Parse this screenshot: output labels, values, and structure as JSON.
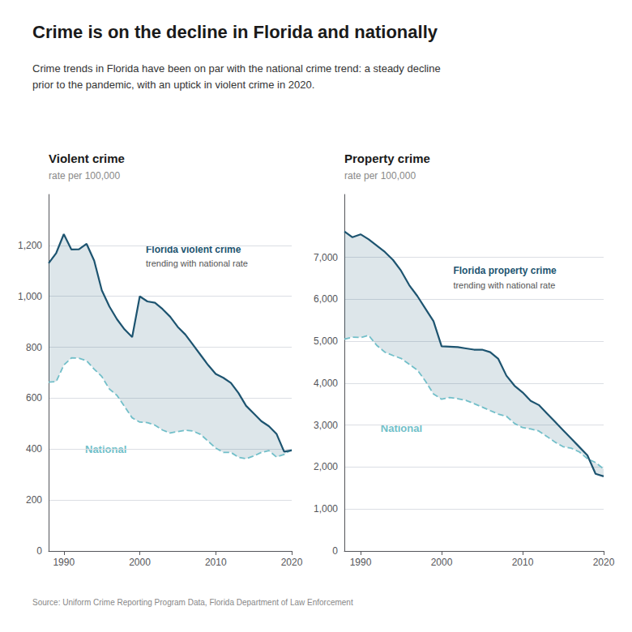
{
  "title": "Crime is on the decline in Florida and nationally",
  "subtitle": "Crime trends in Florida have been on par with the national crime trend: a steady decline\nprior to the pandemic, with an uptick in violent crime in 2020.",
  "annotations": [
    "Source: Uniform Crime Reporting Program Data, Florida Department of Law Enforcement"
  ],
  "chart_data": [
    {
      "type": "line",
      "title": "Violent crime",
      "subtitle": "rate per 100,000",
      "annotations": [
        "trending with national rate"
      ],
      "x": [
        1988,
        1989,
        1990,
        1991,
        1992,
        1993,
        1994,
        1995,
        1996,
        1997,
        1998,
        1999,
        2000,
        2001,
        2002,
        2003,
        2004,
        2005,
        2006,
        2007,
        2008,
        2009,
        2010,
        2011,
        2012,
        2013,
        2014,
        2015,
        2016,
        2017,
        2018,
        2019,
        2020
      ],
      "series": [
        {
          "name": "National",
          "color": "#72bfc9",
          "line_style": "dashed",
          "values": [
            663,
            665,
            730,
            758,
            757,
            747,
            714,
            685,
            636,
            611,
            567,
            523,
            506,
            504,
            494,
            475,
            463,
            469,
            474,
            471,
            458,
            431,
            404,
            387,
            387,
            368,
            362,
            373,
            387,
            394,
            369,
            379,
            398
          ]
        },
        {
          "name": "Florida violent crime",
          "color": "#1d5470",
          "line_style": "solid",
          "values": [
            1130,
            1170,
            1244,
            1184,
            1185,
            1206,
            1140,
            1024,
            960,
            910,
            870,
            840,
            1000,
            980,
            975,
            950,
            920,
            880,
            850,
            810,
            770,
            730,
            695,
            680,
            660,
            620,
            570,
            540,
            510,
            490,
            460,
            390,
            395
          ]
        }
      ],
      "xlim": [
        1988,
        2020
      ],
      "xticks": [
        1990,
        2000,
        2010,
        2020
      ],
      "ylim": [
        0,
        1400
      ],
      "yticks": [
        0,
        200,
        400,
        600,
        800,
        {
          "value": 1000,
          "label": "1,000"
        },
        {
          "value": 1200,
          "label": "1,200"
        }
      ],
      "grid": true
    },
    {
      "type": "line",
      "title": "Property crime",
      "subtitle": "rate per 100,000",
      "annotations": [
        "trending with national rate"
      ],
      "x": [
        1988,
        1989,
        1990,
        1991,
        1992,
        1993,
        1994,
        1995,
        1996,
        1997,
        1998,
        1999,
        2000,
        2001,
        2002,
        2003,
        2004,
        2005,
        2006,
        2007,
        2008,
        2009,
        2010,
        2011,
        2012,
        2013,
        2014,
        2015,
        2016,
        2017,
        2018,
        2019,
        2020
      ],
      "series": [
        {
          "name": "National",
          "color": "#72bfc9",
          "line_style": "dashed",
          "values": [
            5050,
            5100,
            5088,
            5140,
            4903,
            4740,
            4660,
            4591,
            4451,
            4316,
            4052,
            3743,
            3618,
            3658,
            3631,
            3591,
            3514,
            3432,
            3346,
            3264,
            3212,
            3041,
            2942,
            2909,
            2860,
            2731,
            2596,
            2487,
            2451,
            2362,
            2200,
            2110,
            1958
          ]
        },
        {
          "name": "Florida property crime",
          "color": "#1d5470",
          "line_style": "solid",
          "values": [
            7620,
            7480,
            7550,
            7430,
            7280,
            7130,
            6940,
            6680,
            6340,
            6080,
            5780,
            5480,
            4880,
            4870,
            4860,
            4830,
            4800,
            4800,
            4740,
            4580,
            4180,
            3940,
            3780,
            3580,
            3480,
            3280,
            3080,
            2880,
            2680,
            2480,
            2280,
            1840,
            1780
          ]
        }
      ],
      "xlim": [
        1988,
        2020
      ],
      "xticks": [
        1990,
        2000,
        2010,
        2020
      ],
      "ylim": [
        0,
        8500
      ],
      "yticks": [
        0,
        {
          "value": 1000,
          "label": "1,000"
        },
        {
          "value": 2000,
          "label": "2,000"
        },
        {
          "value": 3000,
          "label": "3,000"
        },
        {
          "value": 4000,
          "label": "4,000"
        },
        {
          "value": 5000,
          "label": "5,000"
        },
        {
          "value": 6000,
          "label": "6,000"
        },
        {
          "value": 7000,
          "label": "7,000"
        }
      ],
      "grid": true
    }
  ]
}
